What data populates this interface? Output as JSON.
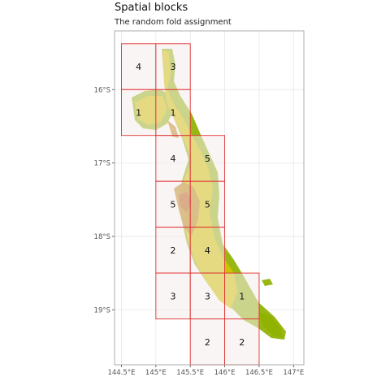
{
  "title": "Spatial blocks",
  "subtitle": "The random fold assignment",
  "x_ticks": [
    "144.5°E",
    "145°E",
    "145.5°E",
    "146°E",
    "146.5°E",
    "147°E"
  ],
  "y_ticks": [
    "16°S",
    "17°S",
    "18°S",
    "19°S"
  ],
  "colors": {
    "block_fill": "#f6eded",
    "block_border": "#e03030",
    "grid": "#e6e6e6",
    "panel_border": "#999999",
    "terrain_low": "#8fb100",
    "terrain_mid": "#d6c200",
    "terrain_high": "#b9820f",
    "terrain_peak": "#b85a18"
  },
  "chart_data": {
    "type": "map",
    "x_axis": {
      "lon_range": [
        144.4,
        147.15
      ],
      "ticks": [
        144.5,
        145,
        145.5,
        146,
        146.5,
        147
      ]
    },
    "y_axis": {
      "lat_range": [
        -19.75,
        -15.2
      ],
      "ticks": [
        -16,
        -17,
        -18,
        -19
      ]
    },
    "grid": true,
    "blocks": [
      {
        "lon": [
          144.5,
          145.0
        ],
        "lat": [
          -15.375,
          -16.0
        ],
        "fold": "4"
      },
      {
        "lon": [
          145.0,
          145.5
        ],
        "lat": [
          -15.375,
          -16.0
        ],
        "fold": "3"
      },
      {
        "lon": [
          144.5,
          145.0
        ],
        "lat": [
          -16.0,
          -16.625
        ],
        "fold": "1"
      },
      {
        "lon": [
          145.0,
          145.5
        ],
        "lat": [
          -16.0,
          -16.625
        ],
        "fold": "1"
      },
      {
        "lon": [
          145.0,
          145.5
        ],
        "lat": [
          -16.625,
          -17.25
        ],
        "fold": "4"
      },
      {
        "lon": [
          145.5,
          146.0
        ],
        "lat": [
          -16.625,
          -17.25
        ],
        "fold": "5"
      },
      {
        "lon": [
          145.0,
          145.5
        ],
        "lat": [
          -17.25,
          -17.875
        ],
        "fold": "5"
      },
      {
        "lon": [
          145.5,
          146.0
        ],
        "lat": [
          -17.25,
          -17.875
        ],
        "fold": "5"
      },
      {
        "lon": [
          145.0,
          145.5
        ],
        "lat": [
          -17.875,
          -18.5
        ],
        "fold": "2"
      },
      {
        "lon": [
          145.5,
          146.0
        ],
        "lat": [
          -17.875,
          -18.5
        ],
        "fold": "4"
      },
      {
        "lon": [
          145.0,
          145.5
        ],
        "lat": [
          -18.5,
          -19.125
        ],
        "fold": "3"
      },
      {
        "lon": [
          145.5,
          146.0
        ],
        "lat": [
          -18.5,
          -19.125
        ],
        "fold": "3"
      },
      {
        "lon": [
          146.0,
          146.5
        ],
        "lat": [
          -18.5,
          -19.125
        ],
        "fold": "1"
      },
      {
        "lon": [
          145.5,
          146.0
        ],
        "lat": [
          -19.125,
          -19.75
        ],
        "fold": "2"
      },
      {
        "lon": [
          146.0,
          146.5
        ],
        "lat": [
          -19.125,
          -19.75
        ],
        "fold": "2"
      }
    ]
  }
}
